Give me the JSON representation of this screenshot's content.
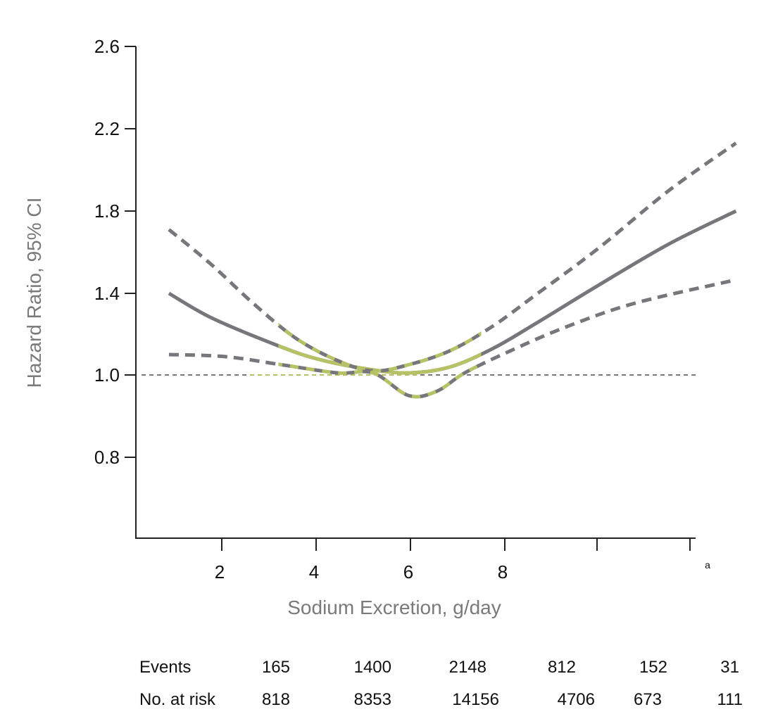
{
  "chart_data": {
    "type": "line",
    "title": "",
    "xlabel": "Sodium Excretion, g/day",
    "ylabel": "Hazard Ratio, 95% CI",
    "x_ticks": [
      "2",
      "4",
      "6",
      "8",
      "",
      "a"
    ],
    "x_tick_values": [
      2,
      4,
      6,
      8,
      10,
      12
    ],
    "y_ticks": [
      "0.8",
      "1.0",
      "1.4",
      "1.8",
      "2.2",
      "2.6"
    ],
    "reference_line": 1.0,
    "highlight_range": [
      3.2,
      7.5
    ],
    "colors": {
      "curve": "#77777b",
      "highlight": "#b5c265",
      "axis": "#222222"
    },
    "series": [
      {
        "role": "estimate",
        "style": "solid",
        "x": [
          0.88,
          1.78,
          3.12,
          4.0,
          5.06,
          5.96,
          6.85,
          7.75,
          8.64,
          9.99,
          11.48,
          12.9
        ],
        "y": [
          1.4,
          1.28,
          1.15,
          1.08,
          1.03,
          1.01,
          1.04,
          1.13,
          1.25,
          1.44,
          1.64,
          1.8
        ]
      },
      {
        "role": "upper-ci",
        "style": "dashed",
        "x": [
          0.88,
          1.78,
          2.67,
          3.57,
          4.46,
          5.21,
          5.96,
          6.85,
          7.75,
          8.64,
          9.99,
          11.48,
          12.9
        ],
        "y": [
          1.71,
          1.54,
          1.35,
          1.18,
          1.07,
          1.02,
          1.05,
          1.12,
          1.24,
          1.39,
          1.62,
          1.9,
          2.13
        ]
      },
      {
        "role": "lower-ci",
        "style": "dashed",
        "x": [
          0.88,
          2.07,
          3.27,
          4.46,
          5.21,
          5.96,
          6.55,
          7.15,
          8.04,
          9.24,
          10.73,
          12.79
        ],
        "y": [
          1.1,
          1.09,
          1.05,
          1.01,
          1.01,
          0.95,
          0.96,
          1.01,
          1.11,
          1.23,
          1.35,
          1.46
        ]
      }
    ]
  },
  "table": {
    "rows": [
      {
        "label": "Events",
        "values": [
          "165",
          "1400",
          "2148",
          "812",
          "152",
          "31"
        ]
      },
      {
        "label": "No. at risk",
        "values": [
          "818",
          "8353",
          "14156",
          "4706",
          "673",
          "111"
        ]
      }
    ]
  }
}
